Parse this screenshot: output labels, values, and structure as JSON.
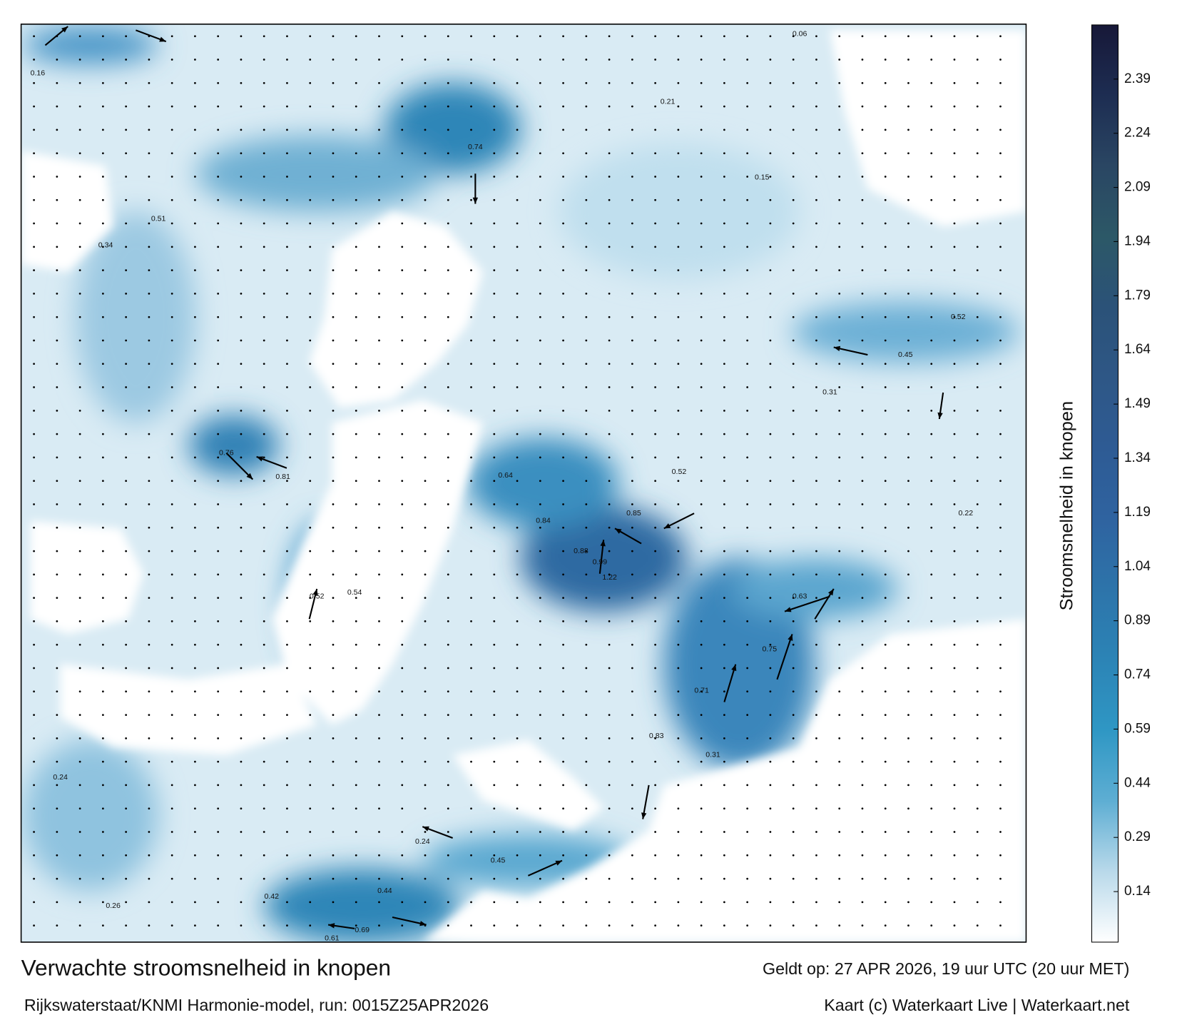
{
  "title": "Verwachte stroomsnelheid in knopen",
  "subtitle": "Rijkswaterstaat/KNMI Harmonie-model, run: 0015Z25APR2026",
  "valid_time": "Geldt op: 27 APR 2026, 19 uur UTC (20 uur MET)",
  "credit": "Kaart (c) Waterkaart Live | Waterkaart.net",
  "colorbar": {
    "label": "Stroomsnelheid in knopen",
    "clim": [
      0,
      2.54
    ],
    "ticks": [
      0.14,
      0.29,
      0.44,
      0.59,
      0.74,
      0.89,
      1.04,
      1.19,
      1.34,
      1.49,
      1.64,
      1.79,
      1.94,
      2.09,
      2.24,
      2.39
    ],
    "colors": [
      "#ffffff",
      "#b9d9ea",
      "#5eaed3",
      "#2f97c4",
      "#2c84b6",
      "#2d74aa",
      "#2f63a0",
      "#2e5b94",
      "#2e5786",
      "#2b5278",
      "#2c5867",
      "#2a4663",
      "#1d2d52",
      "#171838"
    ]
  },
  "map_labels": [
    0.74,
    0.99,
    1.22,
    0.88,
    0.85,
    0.84,
    0.52,
    0.63,
    0.75,
    0.71,
    0.83,
    0.69,
    0.61,
    0.44,
    0.42,
    0.76,
    0.81,
    0.52,
    0.54,
    0.45,
    0.24,
    0.45,
    0.22,
    0.15,
    0.21,
    0.51,
    0.34,
    0.24,
    0.26,
    0.64,
    0.52,
    0.31,
    0.31,
    0.16,
    0.06
  ]
}
